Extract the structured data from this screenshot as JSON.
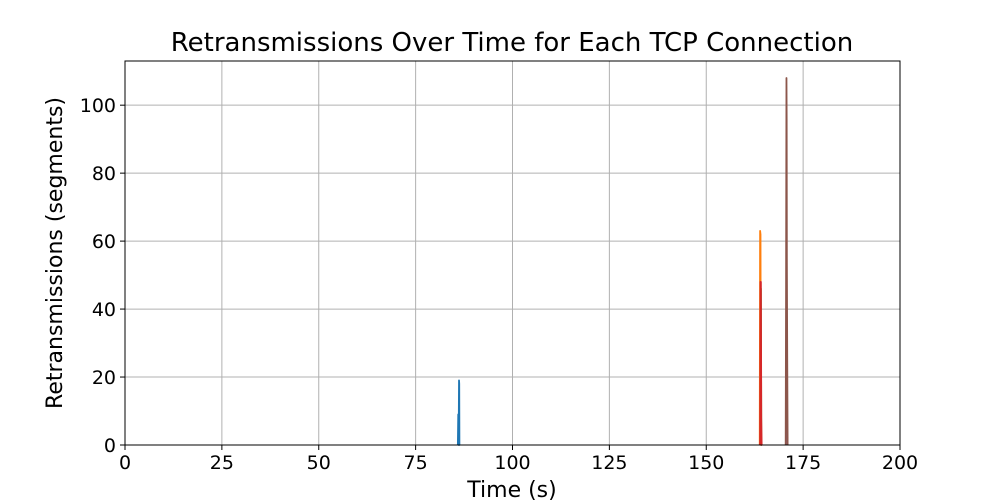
{
  "chart_data": {
    "type": "line",
    "title": "Retransmissions Over Time for Each TCP Connection",
    "xlabel": "Time (s)",
    "ylabel": "Retransmissions (segments)",
    "xlim": [
      0,
      200
    ],
    "ylim": [
      0,
      113
    ],
    "xticks": [
      0,
      25,
      50,
      75,
      100,
      125,
      150,
      175,
      200
    ],
    "yticks": [
      0,
      20,
      40,
      60,
      80,
      100
    ],
    "grid": true,
    "series": [
      {
        "color": "#1f77b4",
        "x": [
          85.9,
          86.0,
          86.1,
          86.2,
          86.25,
          86.3,
          86.4
        ],
        "y": [
          0,
          9,
          0,
          19,
          18,
          0,
          0
        ]
      },
      {
        "color": "#ff7f0e",
        "x": [
          163.8,
          163.9,
          164.0,
          164.1,
          164.2
        ],
        "y": [
          0,
          63,
          62,
          0,
          0
        ]
      },
      {
        "color": "#2ca02c",
        "x": [
          164.0,
          164.1,
          164.2
        ],
        "y": [
          0,
          46,
          0
        ]
      },
      {
        "color": "#d62728",
        "x": [
          163.9,
          164.0,
          164.1,
          164.2,
          164.3,
          164.4
        ],
        "y": [
          0,
          48,
          48,
          8,
          0,
          0
        ]
      },
      {
        "color": "#9467bd",
        "x": [
          170.6,
          170.7,
          170.8,
          170.9
        ],
        "y": [
          0,
          46,
          25,
          0
        ]
      },
      {
        "color": "#8c564b",
        "x": [
          170.5,
          170.6,
          170.7,
          170.75,
          170.8,
          170.9,
          171.0
        ],
        "y": [
          0,
          46,
          108,
          96,
          55,
          25,
          0
        ]
      }
    ]
  }
}
